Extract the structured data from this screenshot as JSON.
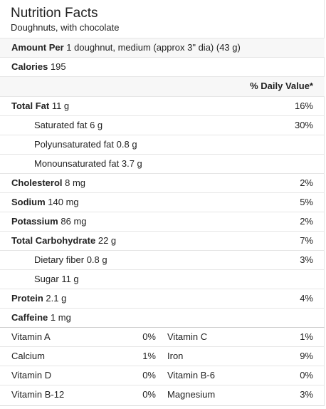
{
  "header": {
    "title": "Nutrition Facts",
    "subtitle": "Doughnuts, with chocolate"
  },
  "amount": {
    "label": "Amount Per",
    "value": "1 doughnut, medium (approx 3\" dia) (43 g)"
  },
  "calories": {
    "label": "Calories",
    "value": "195"
  },
  "dv_header": "% Daily Value*",
  "nutrients": [
    {
      "label": "Total Fat",
      "amount": "11 g",
      "dv": "16%"
    },
    {
      "label": "Saturated fat",
      "amount": "6 g",
      "dv": "30%"
    },
    {
      "label": "Polyunsaturated fat",
      "amount": "0.8 g",
      "dv": ""
    },
    {
      "label": "Monounsaturated fat",
      "amount": "3.7 g",
      "dv": ""
    },
    {
      "label": "Cholesterol",
      "amount": "8 mg",
      "dv": "2%"
    },
    {
      "label": "Sodium",
      "amount": "140 mg",
      "dv": "5%"
    },
    {
      "label": "Potassium",
      "amount": "86 mg",
      "dv": "2%"
    },
    {
      "label": "Total Carbohydrate",
      "amount": "22 g",
      "dv": "7%"
    },
    {
      "label": "Dietary fiber",
      "amount": "0.8 g",
      "dv": "3%"
    },
    {
      "label": "Sugar",
      "amount": "11 g",
      "dv": ""
    },
    {
      "label": "Protein",
      "amount": "2.1 g",
      "dv": "4%"
    },
    {
      "label": "Caffeine",
      "amount": "1 mg",
      "dv": ""
    }
  ],
  "vitamins": [
    {
      "left_name": "Vitamin A",
      "left_pct": "0%",
      "right_name": "Vitamin C",
      "right_pct": "1%"
    },
    {
      "left_name": "Calcium",
      "left_pct": "1%",
      "right_name": "Iron",
      "right_pct": "9%"
    },
    {
      "left_name": "Vitamin D",
      "left_pct": "0%",
      "right_name": "Vitamin B-6",
      "right_pct": "0%"
    },
    {
      "left_name": "Vitamin B-12",
      "left_pct": "0%",
      "right_name": "Magnesium",
      "right_pct": "3%"
    }
  ]
}
